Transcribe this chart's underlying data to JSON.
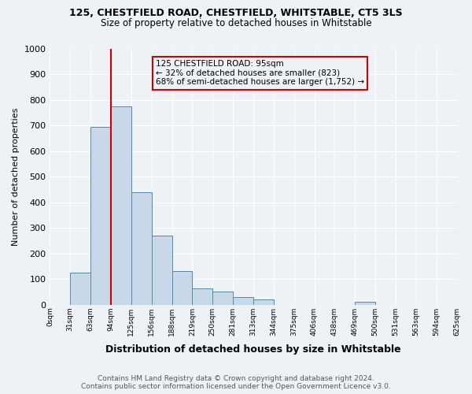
{
  "title": "125, CHESTFIELD ROAD, CHESTFIELD, WHITSTABLE, CT5 3LS",
  "subtitle": "Size of property relative to detached houses in Whitstable",
  "xlabel": "Distribution of detached houses by size in Whitstable",
  "ylabel": "Number of detached properties",
  "bin_labels": [
    "0sqm",
    "31sqm",
    "63sqm",
    "94sqm",
    "125sqm",
    "156sqm",
    "188sqm",
    "219sqm",
    "250sqm",
    "281sqm",
    "313sqm",
    "344sqm",
    "375sqm",
    "406sqm",
    "438sqm",
    "469sqm",
    "500sqm",
    "531sqm",
    "563sqm",
    "594sqm",
    "625sqm"
  ],
  "bar_values": [
    0,
    125,
    695,
    775,
    440,
    270,
    130,
    65,
    50,
    30,
    20,
    0,
    0,
    0,
    0,
    10,
    0,
    0,
    0,
    0
  ],
  "bar_color": "#c8d8e8",
  "bar_edge_color": "#5588aa",
  "property_bin_index": 3,
  "annotation_title": "125 CHESTFIELD ROAD: 95sqm",
  "annotation_line1": "← 32% of detached houses are smaller (823)",
  "annotation_line2": "68% of semi-detached houses are larger (1,752) →",
  "annotation_box_color": "#cc0000",
  "vline_color": "#cc0000",
  "ylim": [
    0,
    1000
  ],
  "yticks": [
    0,
    100,
    200,
    300,
    400,
    500,
    600,
    700,
    800,
    900,
    1000
  ],
  "background_color": "#eef2f7",
  "grid_color": "#ffffff",
  "footer": "Contains HM Land Registry data © Crown copyright and database right 2024.\nContains public sector information licensed under the Open Government Licence v3.0."
}
